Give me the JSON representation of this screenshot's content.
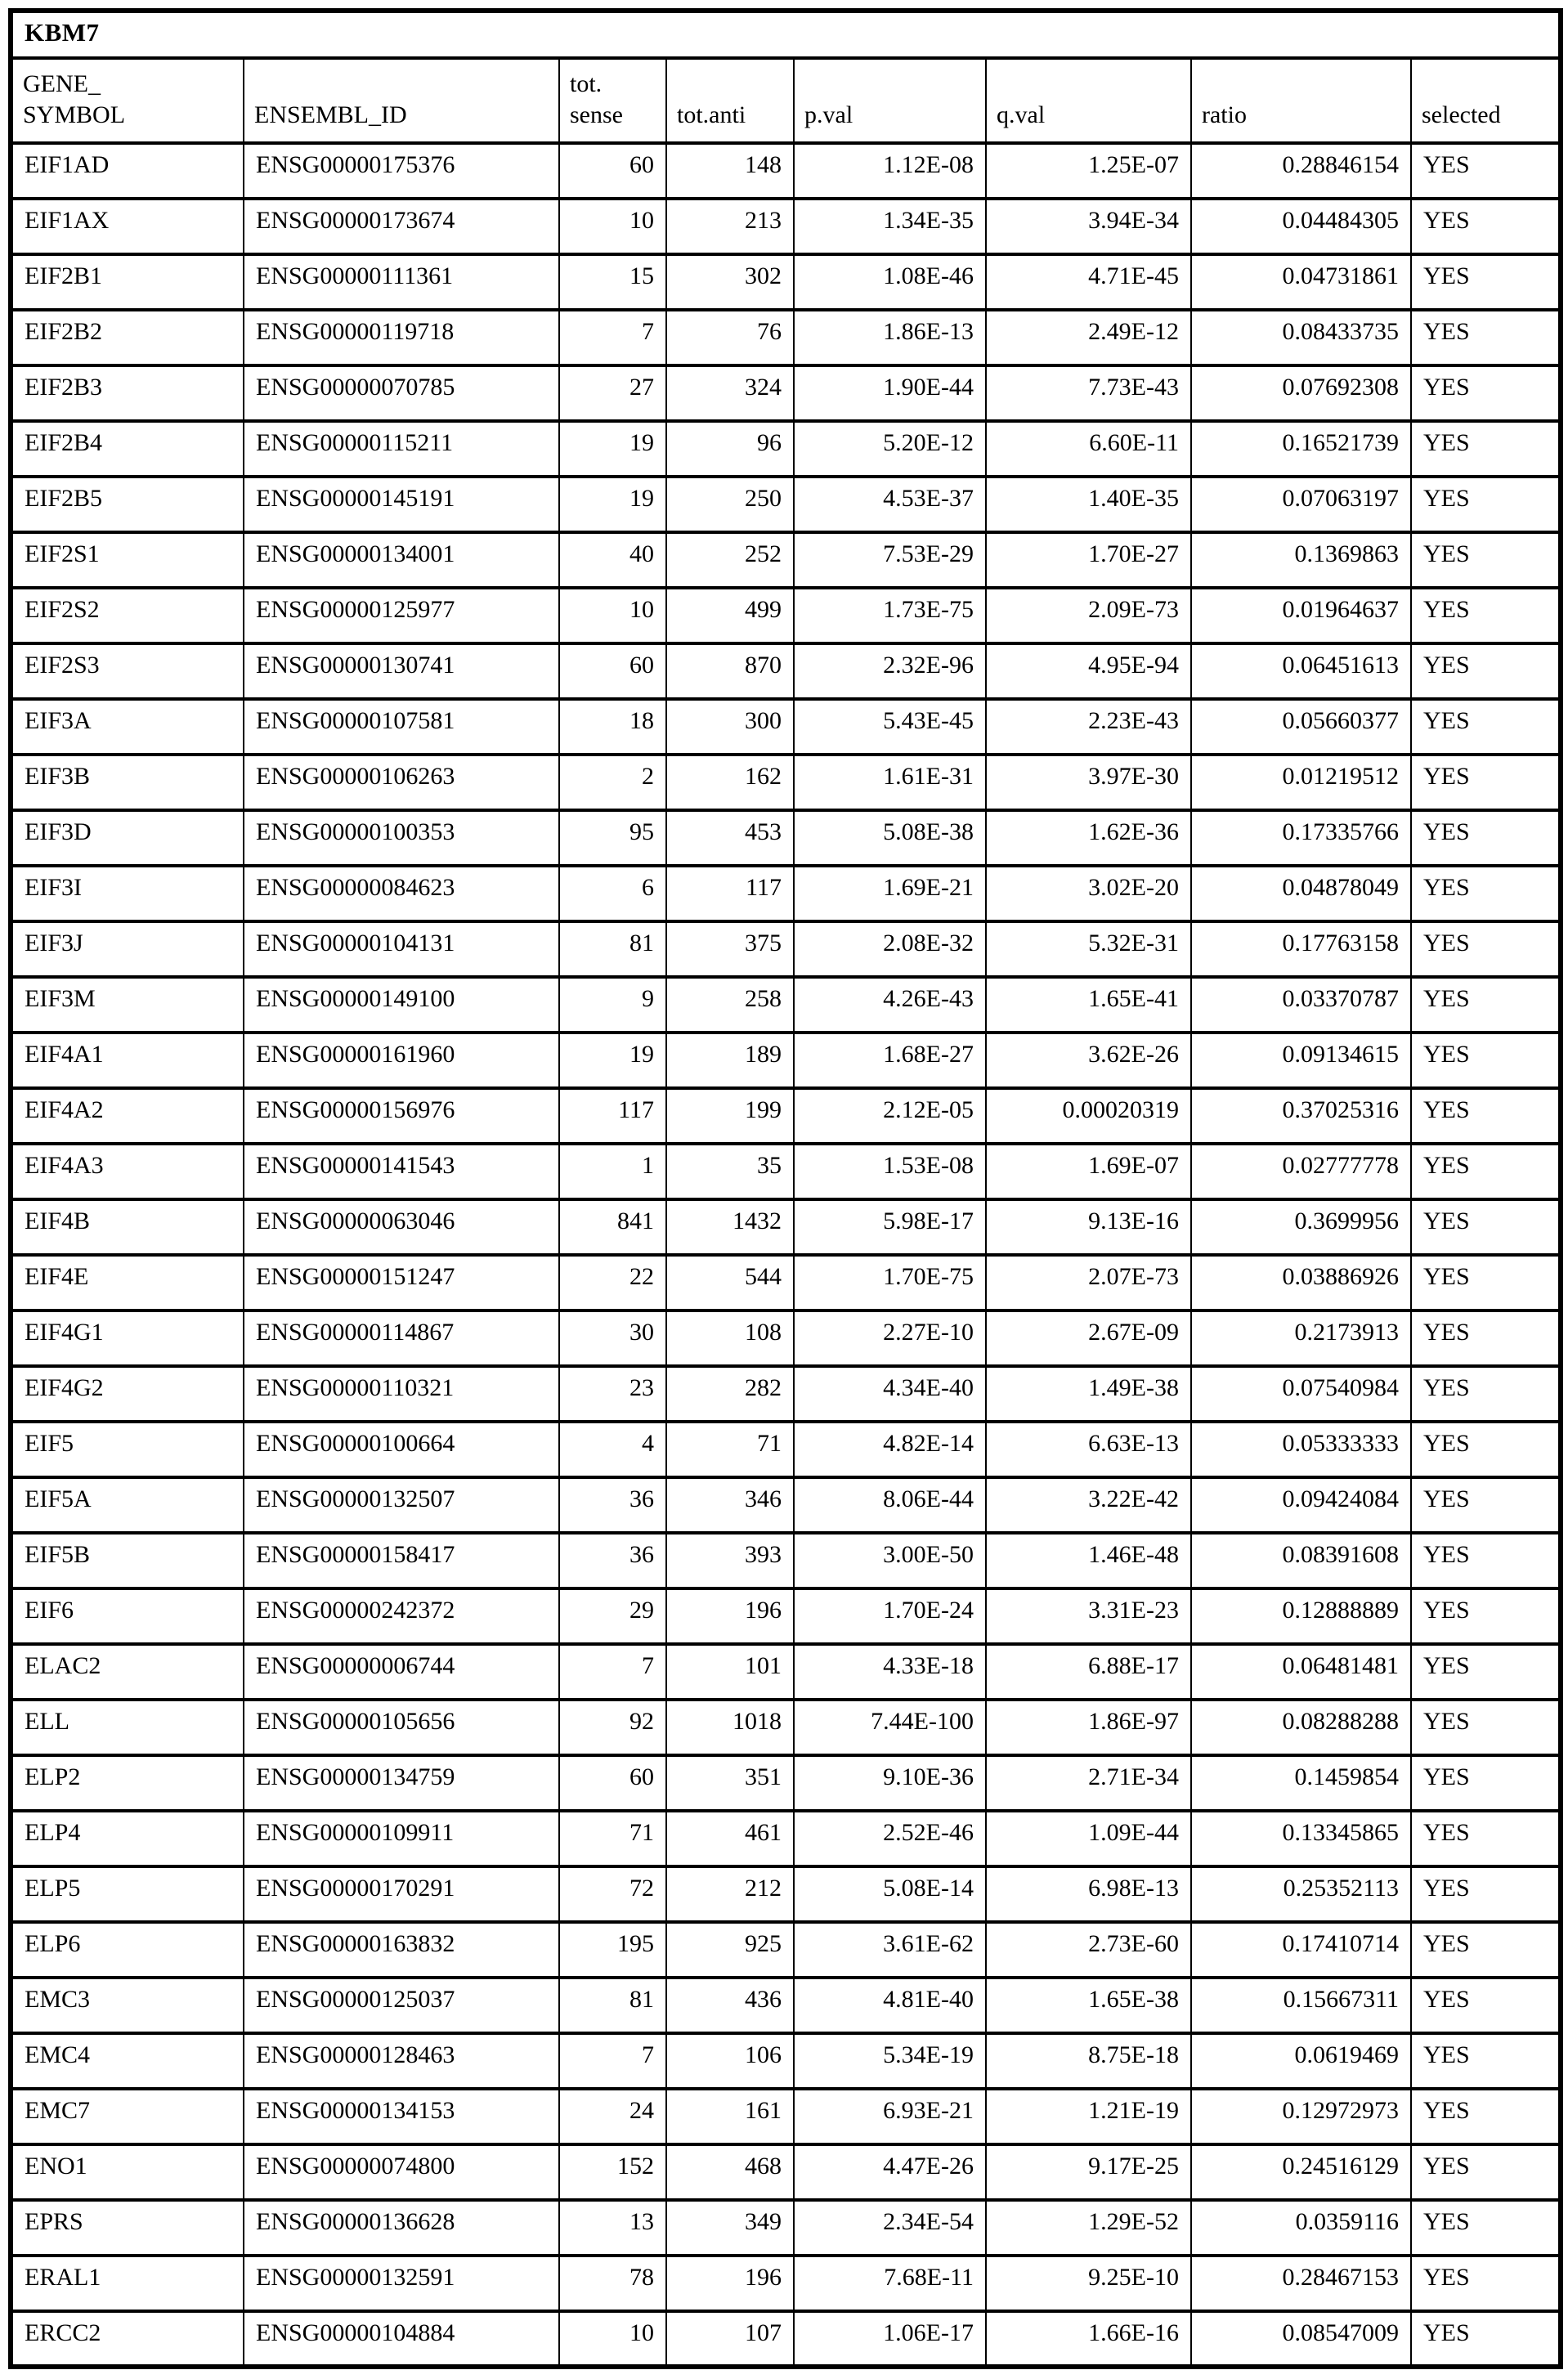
{
  "table": {
    "title": "KBM7",
    "columns": [
      {
        "key": "gene_symbol",
        "label": "GENE_\nSYMBOL"
      },
      {
        "key": "ensembl_id",
        "label": "ENSEMBL_ID"
      },
      {
        "key": "tot_sense",
        "label": "tot.\nsense"
      },
      {
        "key": "tot_anti",
        "label": "tot.anti"
      },
      {
        "key": "p_val",
        "label": "p.val"
      },
      {
        "key": "q_val",
        "label": "q.val"
      },
      {
        "key": "ratio",
        "label": "ratio"
      },
      {
        "key": "selected",
        "label": "selected"
      }
    ],
    "rows": [
      [
        "EIF1AD",
        "ENSG00000175376",
        "60",
        "148",
        "1.12E-08",
        "1.25E-07",
        "0.28846154",
        "YES"
      ],
      [
        "EIF1AX",
        "ENSG00000173674",
        "10",
        "213",
        "1.34E-35",
        "3.94E-34",
        "0.04484305",
        "YES"
      ],
      [
        "EIF2B1",
        "ENSG00000111361",
        "15",
        "302",
        "1.08E-46",
        "4.71E-45",
        "0.04731861",
        "YES"
      ],
      [
        "EIF2B2",
        "ENSG00000119718",
        "7",
        "76",
        "1.86E-13",
        "2.49E-12",
        "0.08433735",
        "YES"
      ],
      [
        "EIF2B3",
        "ENSG00000070785",
        "27",
        "324",
        "1.90E-44",
        "7.73E-43",
        "0.07692308",
        "YES"
      ],
      [
        "EIF2B4",
        "ENSG00000115211",
        "19",
        "96",
        "5.20E-12",
        "6.60E-11",
        "0.16521739",
        "YES"
      ],
      [
        "EIF2B5",
        "ENSG00000145191",
        "19",
        "250",
        "4.53E-37",
        "1.40E-35",
        "0.07063197",
        "YES"
      ],
      [
        "EIF2S1",
        "ENSG00000134001",
        "40",
        "252",
        "7.53E-29",
        "1.70E-27",
        "0.1369863",
        "YES"
      ],
      [
        "EIF2S2",
        "ENSG00000125977",
        "10",
        "499",
        "1.73E-75",
        "2.09E-73",
        "0.01964637",
        "YES"
      ],
      [
        "EIF2S3",
        "ENSG00000130741",
        "60",
        "870",
        "2.32E-96",
        "4.95E-94",
        "0.06451613",
        "YES"
      ],
      [
        "EIF3A",
        "ENSG00000107581",
        "18",
        "300",
        "5.43E-45",
        "2.23E-43",
        "0.05660377",
        "YES"
      ],
      [
        "EIF3B",
        "ENSG00000106263",
        "2",
        "162",
        "1.61E-31",
        "3.97E-30",
        "0.01219512",
        "YES"
      ],
      [
        "EIF3D",
        "ENSG00000100353",
        "95",
        "453",
        "5.08E-38",
        "1.62E-36",
        "0.17335766",
        "YES"
      ],
      [
        "EIF3I",
        "ENSG00000084623",
        "6",
        "117",
        "1.69E-21",
        "3.02E-20",
        "0.04878049",
        "YES"
      ],
      [
        "EIF3J",
        "ENSG00000104131",
        "81",
        "375",
        "2.08E-32",
        "5.32E-31",
        "0.17763158",
        "YES"
      ],
      [
        "EIF3M",
        "ENSG00000149100",
        "9",
        "258",
        "4.26E-43",
        "1.65E-41",
        "0.03370787",
        "YES"
      ],
      [
        "EIF4A1",
        "ENSG00000161960",
        "19",
        "189",
        "1.68E-27",
        "3.62E-26",
        "0.09134615",
        "YES"
      ],
      [
        "EIF4A2",
        "ENSG00000156976",
        "117",
        "199",
        "2.12E-05",
        "0.00020319",
        "0.37025316",
        "YES"
      ],
      [
        "EIF4A3",
        "ENSG00000141543",
        "1",
        "35",
        "1.53E-08",
        "1.69E-07",
        "0.02777778",
        "YES"
      ],
      [
        "EIF4B",
        "ENSG00000063046",
        "841",
        "1432",
        "5.98E-17",
        "9.13E-16",
        "0.3699956",
        "YES"
      ],
      [
        "EIF4E",
        "ENSG00000151247",
        "22",
        "544",
        "1.70E-75",
        "2.07E-73",
        "0.03886926",
        "YES"
      ],
      [
        "EIF4G1",
        "ENSG00000114867",
        "30",
        "108",
        "2.27E-10",
        "2.67E-09",
        "0.2173913",
        "YES"
      ],
      [
        "EIF4G2",
        "ENSG00000110321",
        "23",
        "282",
        "4.34E-40",
        "1.49E-38",
        "0.07540984",
        "YES"
      ],
      [
        "EIF5",
        "ENSG00000100664",
        "4",
        "71",
        "4.82E-14",
        "6.63E-13",
        "0.05333333",
        "YES"
      ],
      [
        "EIF5A",
        "ENSG00000132507",
        "36",
        "346",
        "8.06E-44",
        "3.22E-42",
        "0.09424084",
        "YES"
      ],
      [
        "EIF5B",
        "ENSG00000158417",
        "36",
        "393",
        "3.00E-50",
        "1.46E-48",
        "0.08391608",
        "YES"
      ],
      [
        "EIF6",
        "ENSG00000242372",
        "29",
        "196",
        "1.70E-24",
        "3.31E-23",
        "0.12888889",
        "YES"
      ],
      [
        "ELAC2",
        "ENSG00000006744",
        "7",
        "101",
        "4.33E-18",
        "6.88E-17",
        "0.06481481",
        "YES"
      ],
      [
        "ELL",
        "ENSG00000105656",
        "92",
        "1018",
        "7.44E-100",
        "1.86E-97",
        "0.08288288",
        "YES"
      ],
      [
        "ELP2",
        "ENSG00000134759",
        "60",
        "351",
        "9.10E-36",
        "2.71E-34",
        "0.1459854",
        "YES"
      ],
      [
        "ELP4",
        "ENSG00000109911",
        "71",
        "461",
        "2.52E-46",
        "1.09E-44",
        "0.13345865",
        "YES"
      ],
      [
        "ELP5",
        "ENSG00000170291",
        "72",
        "212",
        "5.08E-14",
        "6.98E-13",
        "0.25352113",
        "YES"
      ],
      [
        "ELP6",
        "ENSG00000163832",
        "195",
        "925",
        "3.61E-62",
        "2.73E-60",
        "0.17410714",
        "YES"
      ],
      [
        "EMC3",
        "ENSG00000125037",
        "81",
        "436",
        "4.81E-40",
        "1.65E-38",
        "0.15667311",
        "YES"
      ],
      [
        "EMC4",
        "ENSG00000128463",
        "7",
        "106",
        "5.34E-19",
        "8.75E-18",
        "0.0619469",
        "YES"
      ],
      [
        "EMC7",
        "ENSG00000134153",
        "24",
        "161",
        "6.93E-21",
        "1.21E-19",
        "0.12972973",
        "YES"
      ],
      [
        "ENO1",
        "ENSG00000074800",
        "152",
        "468",
        "4.47E-26",
        "9.17E-25",
        "0.24516129",
        "YES"
      ],
      [
        "EPRS",
        "ENSG00000136628",
        "13",
        "349",
        "2.34E-54",
        "1.29E-52",
        "0.0359116",
        "YES"
      ],
      [
        "ERAL1",
        "ENSG00000132591",
        "78",
        "196",
        "7.68E-11",
        "9.25E-10",
        "0.28467153",
        "YES"
      ],
      [
        "ERCC2",
        "ENSG00000104884",
        "10",
        "107",
        "1.06E-17",
        "1.66E-16",
        "0.08547009",
        "YES"
      ]
    ]
  }
}
